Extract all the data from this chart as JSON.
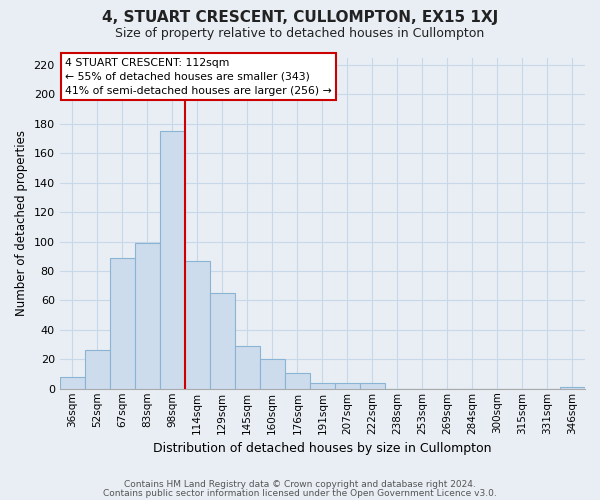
{
  "title": "4, STUART CRESCENT, CULLOMPTON, EX15 1XJ",
  "subtitle": "Size of property relative to detached houses in Cullompton",
  "xlabel": "Distribution of detached houses by size in Cullompton",
  "ylabel": "Number of detached properties",
  "bar_color": "#cddcec",
  "bar_edge_color": "#89b4d4",
  "categories": [
    "36sqm",
    "52sqm",
    "67sqm",
    "83sqm",
    "98sqm",
    "114sqm",
    "129sqm",
    "145sqm",
    "160sqm",
    "176sqm",
    "191sqm",
    "207sqm",
    "222sqm",
    "238sqm",
    "253sqm",
    "269sqm",
    "284sqm",
    "300sqm",
    "315sqm",
    "331sqm",
    "346sqm"
  ],
  "values": [
    8,
    26,
    89,
    99,
    175,
    87,
    65,
    29,
    20,
    11,
    4,
    4,
    4,
    0,
    0,
    0,
    0,
    0,
    0,
    0,
    1
  ],
  "ylim": [
    0,
    225
  ],
  "yticks": [
    0,
    20,
    40,
    60,
    80,
    100,
    120,
    140,
    160,
    180,
    200,
    220
  ],
  "vline_color": "#cc0000",
  "annotation_box_edge_color": "#cc0000",
  "background_color": "#e8eef4",
  "grid_color": "#c8d8e8",
  "footer_line1": "Contains HM Land Registry data © Crown copyright and database right 2024.",
  "footer_line2": "Contains public sector information licensed under the Open Government Licence v3.0.",
  "marker_label": "4 STUART CRESCENT: 112sqm",
  "annotation_line1": "← 55% of detached houses are smaller (343)",
  "annotation_line2": "41% of semi-detached houses are larger (256) →"
}
